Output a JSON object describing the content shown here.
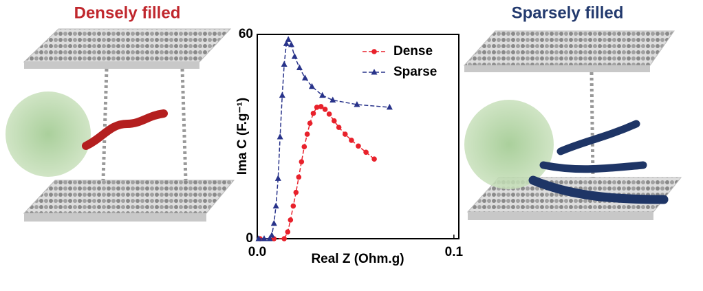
{
  "panel_titles": {
    "left": "Densely filled",
    "right": "Sparsely filled"
  },
  "chart_data": {
    "type": "line",
    "xlabel": "Real Z (Ohm.g)",
    "ylabel": "Ima C (F.g⁻¹)",
    "xlim": [
      0,
      0.1025
    ],
    "ylim": [
      0,
      60
    ],
    "xticks": [
      {
        "value": 0,
        "label": "0.0"
      },
      {
        "value": 0.1,
        "label": "0.1"
      }
    ],
    "yticks": [
      0,
      60
    ],
    "legend": "upper right",
    "series": [
      {
        "name": "Dense",
        "color": "#e8212b",
        "marker": "circle",
        "x": [
          0.0014,
          0.0085,
          0.0137,
          0.0155,
          0.0169,
          0.0183,
          0.0197,
          0.0211,
          0.0225,
          0.0239,
          0.0254,
          0.0268,
          0.0285,
          0.0303,
          0.0324,
          0.0345,
          0.0366,
          0.0391,
          0.0415,
          0.0447,
          0.0479,
          0.0514,
          0.0553,
          0.0595
        ],
        "values": [
          0,
          0,
          0,
          2,
          5.5,
          9.6,
          13.6,
          18.1,
          22.6,
          27.0,
          30.7,
          33.9,
          36.8,
          38.6,
          38.8,
          38.0,
          36.6,
          34.6,
          32.7,
          30.7,
          28.9,
          27.2,
          25.4,
          23.4
        ]
      },
      {
        "name": "Sparse",
        "color": "#28338a",
        "marker": "triangle",
        "x": [
          0.0007,
          0.0035,
          0.0063,
          0.0074,
          0.0085,
          0.0095,
          0.0106,
          0.0116,
          0.0127,
          0.0137,
          0.0148,
          0.0158,
          0.0173,
          0.019,
          0.0215,
          0.0243,
          0.0278,
          0.0331,
          0.0384,
          0.0507,
          0.0673
        ],
        "values": [
          0,
          0,
          0,
          1.0,
          4.5,
          9.6,
          17.7,
          29.9,
          42.1,
          51.2,
          57.3,
          58.5,
          57,
          53.5,
          50.2,
          47.2,
          44.7,
          42.1,
          40.7,
          39.4,
          38.6
        ]
      }
    ]
  }
}
